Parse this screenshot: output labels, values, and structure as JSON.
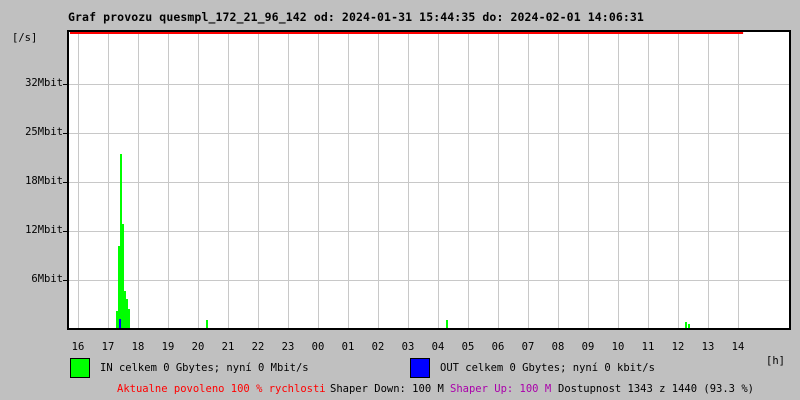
{
  "title": "Graf provozu quesmpl_172_21_96_142 od: 2024-01-31 15:44:35 do: 2024-02-01 14:06:31",
  "y_axis": {
    "unit_label": "[/s]",
    "ticks": [
      "32Mbit",
      "25Mbit",
      "18Mbit",
      "12Mbit",
      "6Mbit"
    ]
  },
  "x_axis": {
    "unit_label": "[h]",
    "ticks": [
      "16",
      "17",
      "18",
      "19",
      "20",
      "21",
      "22",
      "23",
      "00",
      "01",
      "02",
      "03",
      "04",
      "05",
      "06",
      "07",
      "08",
      "09",
      "10",
      "11",
      "12",
      "13",
      "14"
    ]
  },
  "legend": {
    "in_label": "IN celkem 0 Gbytes; nyní 0 Mbit/s",
    "out_label": "OUT celkem 0 Gbytes; nyní 0 kbit/s"
  },
  "status": {
    "allowed": "Aktualne povoleno 100 % rychlosti",
    "shaper_down": "Shaper Down: 100 M",
    "shaper_up": "Shaper Up: 100 M",
    "availability": "Dostupnost 1343 z 1440 (93.3 %)"
  },
  "colors": {
    "background": "#c0c0c0",
    "plot_background": "#ffffff",
    "grid": "#c8c8c8",
    "frame": "#000000",
    "in_series": "#00ff00",
    "out_series": "#0000ff",
    "max_line": "#ff0000",
    "allowed_text": "#ff0000",
    "shaper_up_text": "#aa00aa",
    "text": "#000000"
  },
  "chart_data": {
    "type": "area",
    "title": "Graf provozu quesmpl_172_21_96_142",
    "period_from": "2024-01-31 15:44:35",
    "period_to": "2024-02-01 14:06:31",
    "xlabel": "[h]",
    "ylabel": "[/s]",
    "x_hours": [
      "16",
      "17",
      "18",
      "19",
      "20",
      "21",
      "22",
      "23",
      "00",
      "01",
      "02",
      "03",
      "04",
      "05",
      "06",
      "07",
      "08",
      "09",
      "10",
      "11",
      "12",
      "13",
      "14"
    ],
    "y_tick_mbit": [
      32,
      25,
      18,
      12,
      6
    ],
    "ylim_mbit": [
      0,
      36.5
    ],
    "grid": true,
    "max_line": {
      "label": "100 % limit",
      "ends_at_hour_offset": 22.17
    },
    "series": [
      {
        "name": "IN",
        "unit": "Mbit/s",
        "total": "0 Gbytes",
        "now": "0 Mbit/s",
        "spikes_t_hours_after_16": [
          {
            "t": 1.3,
            "mbit": 2.1
          },
          {
            "t": 1.37,
            "mbit": 10.0
          },
          {
            "t": 1.43,
            "mbit": 21.3
          },
          {
            "t": 1.5,
            "mbit": 12.7
          },
          {
            "t": 1.57,
            "mbit": 4.5
          },
          {
            "t": 1.63,
            "mbit": 3.5
          },
          {
            "t": 1.7,
            "mbit": 2.3
          },
          {
            "t": 4.3,
            "mbit": 1.0
          },
          {
            "t": 12.3,
            "mbit": 1.0
          },
          {
            "t": 20.27,
            "mbit": 0.75
          },
          {
            "t": 20.37,
            "mbit": 0.55
          }
        ]
      },
      {
        "name": "OUT",
        "unit": "kbit/s",
        "total": "0 Gbytes",
        "now": "0 kbit/s",
        "spikes_t_hours_after_16": [
          {
            "t": 1.4,
            "mbit": 1.1
          }
        ]
      }
    ]
  }
}
